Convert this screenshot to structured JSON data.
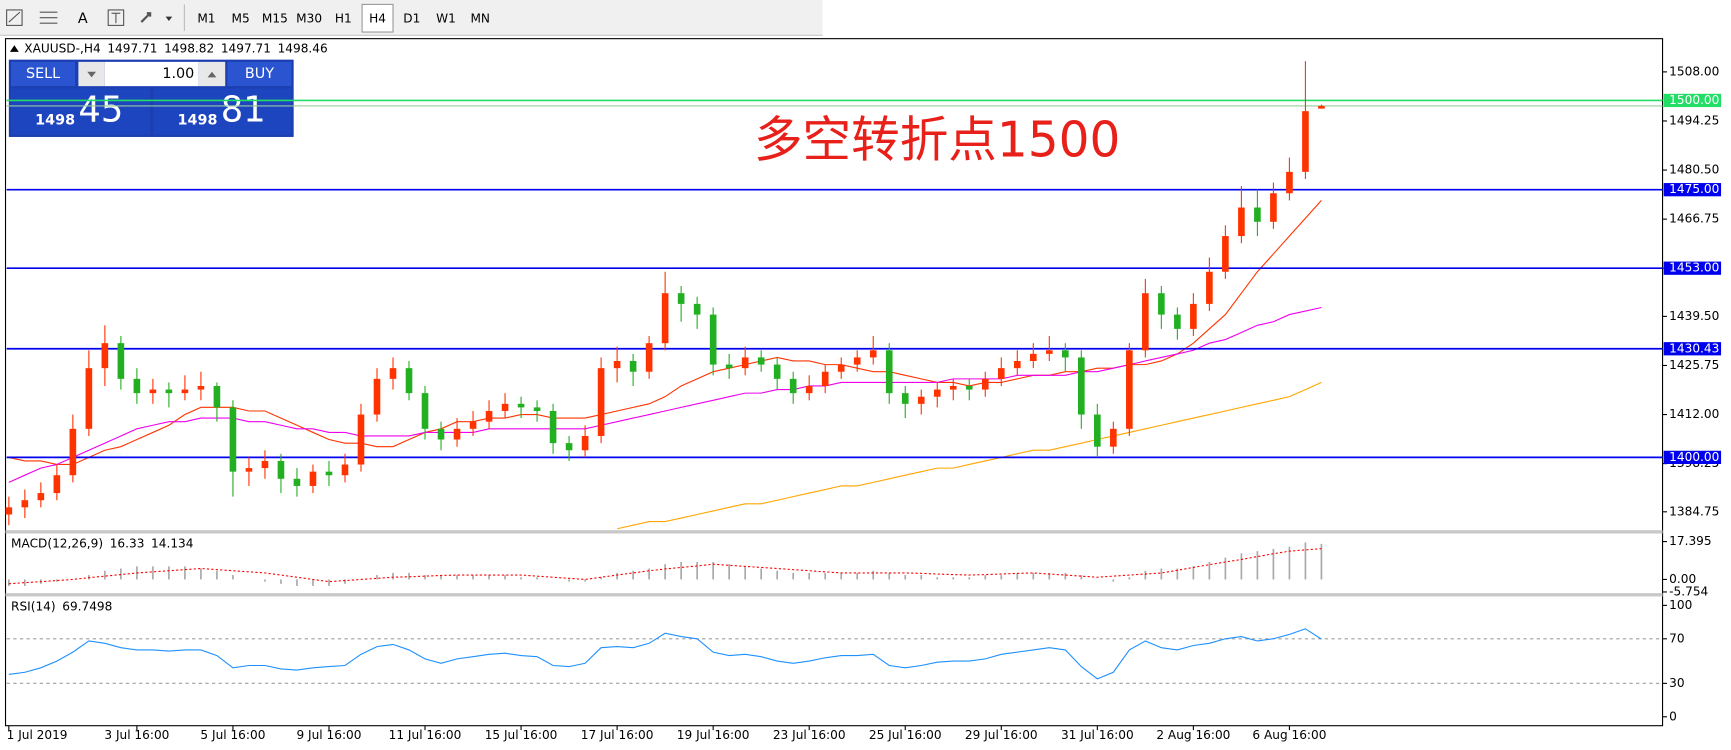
{
  "toolbar": {
    "text_tool": "A",
    "timeframes": [
      "M1",
      "M5",
      "M15",
      "M30",
      "H1",
      "H4",
      "D1",
      "W1",
      "MN"
    ],
    "active": "H4"
  },
  "trade_panel": {
    "sell": "SELL",
    "buy": "BUY",
    "lot": "1.00",
    "bid_big": "1498",
    "bid_small": "45",
    "ask_big": "1498",
    "ask_small": "81"
  },
  "chart_data": {
    "type": "candlestick",
    "symbol": "XAUUSD-,H4",
    "annotation": "多空转折点1500",
    "annotation_color": "#e8201a",
    "categories": [
      "1 Jul 2019",
      null,
      null,
      null,
      null,
      null,
      null,
      null,
      "3 Jul 16:00",
      null,
      null,
      null,
      null,
      null,
      "5 Jul 16:00",
      null,
      null,
      null,
      null,
      null,
      "9 Jul 16:00",
      null,
      null,
      null,
      null,
      null,
      "11 Jul 16:00",
      null,
      null,
      null,
      null,
      null,
      "15 Jul 16:00",
      null,
      null,
      null,
      null,
      null,
      "17 Jul 16:00",
      null,
      null,
      null,
      null,
      null,
      "19 Jul 16:00",
      null,
      null,
      null,
      null,
      null,
      "23 Jul 16:00",
      null,
      null,
      null,
      null,
      null,
      "25 Jul 16:00",
      null,
      null,
      null,
      null,
      null,
      "29 Jul 16:00",
      null,
      null,
      null,
      null,
      null,
      "31 Jul 16:00",
      null,
      null,
      null,
      null,
      null,
      "2 Aug 16:00",
      null,
      null,
      null,
      null,
      null,
      "6 Aug 16:00",
      null,
      null
    ],
    "ohlc": [
      [
        1384,
        1389,
        1381,
        1386
      ],
      [
        1386,
        1391,
        1383,
        1388
      ],
      [
        1388,
        1393,
        1386,
        1390
      ],
      [
        1390,
        1398,
        1388,
        1395
      ],
      [
        1395,
        1412,
        1393,
        1408
      ],
      [
        1408,
        1430,
        1406,
        1425
      ],
      [
        1425,
        1437,
        1420,
        1432
      ],
      [
        1432,
        1434,
        1419,
        1422
      ],
      [
        1422,
        1425,
        1415,
        1418
      ],
      [
        1418,
        1422,
        1415,
        1419
      ],
      [
        1419,
        1421,
        1414,
        1418
      ],
      [
        1418,
        1423,
        1416,
        1419
      ],
      [
        1419,
        1424,
        1416,
        1420
      ],
      [
        1420,
        1421,
        1410,
        1414
      ],
      [
        1414,
        1416,
        1389,
        1396
      ],
      [
        1396,
        1400,
        1392,
        1397
      ],
      [
        1397,
        1402,
        1394,
        1399
      ],
      [
        1399,
        1401,
        1390,
        1394
      ],
      [
        1394,
        1397,
        1389,
        1392
      ],
      [
        1392,
        1398,
        1390,
        1396
      ],
      [
        1396,
        1399,
        1392,
        1395
      ],
      [
        1395,
        1401,
        1393,
        1398
      ],
      [
        1398,
        1415,
        1396,
        1412
      ],
      [
        1412,
        1425,
        1410,
        1422
      ],
      [
        1422,
        1428,
        1419,
        1425
      ],
      [
        1425,
        1427,
        1416,
        1418
      ],
      [
        1418,
        1420,
        1405,
        1408
      ],
      [
        1408,
        1410,
        1402,
        1405
      ],
      [
        1405,
        1411,
        1403,
        1408
      ],
      [
        1408,
        1413,
        1406,
        1410
      ],
      [
        1410,
        1416,
        1408,
        1413
      ],
      [
        1413,
        1418,
        1411,
        1415
      ],
      [
        1415,
        1417,
        1411,
        1414
      ],
      [
        1414,
        1416,
        1410,
        1413
      ],
      [
        1413,
        1415,
        1401,
        1404
      ],
      [
        1404,
        1406,
        1399,
        1402
      ],
      [
        1402,
        1409,
        1400,
        1406
      ],
      [
        1406,
        1428,
        1404,
        1425
      ],
      [
        1425,
        1431,
        1421,
        1427
      ],
      [
        1427,
        1429,
        1420,
        1424
      ],
      [
        1424,
        1434,
        1422,
        1432
      ],
      [
        1432,
        1452,
        1430,
        1446
      ],
      [
        1446,
        1448,
        1438,
        1443
      ],
      [
        1443,
        1445,
        1436,
        1440
      ],
      [
        1440,
        1442,
        1423,
        1426
      ],
      [
        1426,
        1429,
        1422,
        1425
      ],
      [
        1425,
        1431,
        1423,
        1428
      ],
      [
        1428,
        1430,
        1424,
        1426
      ],
      [
        1426,
        1428,
        1419,
        1422
      ],
      [
        1422,
        1424,
        1415,
        1418
      ],
      [
        1418,
        1423,
        1416,
        1420
      ],
      [
        1420,
        1426,
        1418,
        1424
      ],
      [
        1424,
        1428,
        1422,
        1426
      ],
      [
        1426,
        1430,
        1424,
        1428
      ],
      [
        1428,
        1434,
        1426,
        1430
      ],
      [
        1430,
        1432,
        1415,
        1418
      ],
      [
        1418,
        1420,
        1411,
        1415
      ],
      [
        1415,
        1419,
        1412,
        1417
      ],
      [
        1417,
        1421,
        1414,
        1419
      ],
      [
        1419,
        1422,
        1416,
        1420
      ],
      [
        1420,
        1422,
        1416,
        1419
      ],
      [
        1419,
        1424,
        1417,
        1422
      ],
      [
        1422,
        1428,
        1420,
        1425
      ],
      [
        1425,
        1430,
        1423,
        1427
      ],
      [
        1427,
        1432,
        1425,
        1429
      ],
      [
        1429,
        1434,
        1427,
        1430
      ],
      [
        1430,
        1432,
        1424,
        1428
      ],
      [
        1428,
        1430,
        1408,
        1412
      ],
      [
        1412,
        1415,
        1400,
        1403
      ],
      [
        1403,
        1410,
        1401,
        1408
      ],
      [
        1408,
        1432,
        1406,
        1430
      ],
      [
        1430,
        1450,
        1428,
        1446
      ],
      [
        1446,
        1448,
        1436,
        1440
      ],
      [
        1440,
        1442,
        1433,
        1436
      ],
      [
        1436,
        1446,
        1434,
        1443
      ],
      [
        1443,
        1456,
        1441,
        1452
      ],
      [
        1452,
        1465,
        1450,
        1462
      ],
      [
        1462,
        1476,
        1460,
        1470
      ],
      [
        1470,
        1475,
        1462,
        1466
      ],
      [
        1466,
        1477,
        1464,
        1474
      ],
      [
        1474,
        1484,
        1472,
        1480
      ],
      [
        1480,
        1511,
        1478,
        1497
      ],
      [
        1497.71,
        1498.82,
        1497.71,
        1498.46
      ]
    ],
    "up_color": "#ff3300",
    "down_color": "#22b022",
    "moving_averages": [
      {
        "color": "#ff3300",
        "values": [
          1400,
          1399,
          1399,
          1398,
          1398,
          1400,
          1402,
          1403,
          1405,
          1407,
          1409,
          1412,
          1414,
          1414,
          1414,
          1413,
          1413,
          1411,
          1409,
          1407,
          1405,
          1404,
          1404,
          1403,
          1403,
          1405,
          1407,
          1408,
          1410,
          1410,
          1411,
          1411,
          1412,
          1412,
          1411,
          1411,
          1411,
          1412,
          1413,
          1414,
          1415,
          1417,
          1420,
          1422,
          1424,
          1425,
          1426,
          1427,
          1428,
          1427,
          1427,
          1426,
          1426,
          1425,
          1424,
          1424,
          1423,
          1422,
          1421,
          1421,
          1420,
          1421,
          1421,
          1422,
          1423,
          1423,
          1424,
          1424,
          1425,
          1425,
          1426,
          1426,
          1427,
          1429,
          1432,
          1436,
          1440,
          1446,
          1452,
          1457,
          1462,
          1467,
          1472
        ]
      },
      {
        "color": "#ee00ee",
        "values": [
          1393,
          1395,
          1397,
          1398,
          1400,
          1402,
          1404,
          1406,
          1408,
          1409,
          1410,
          1410,
          1411,
          1411,
          1411,
          1410,
          1410,
          1409,
          1408,
          1408,
          1407,
          1407,
          1406,
          1406,
          1406,
          1406,
          1407,
          1407,
          1407,
          1407,
          1408,
          1408,
          1408,
          1408,
          1408,
          1408,
          1408,
          1409,
          1410,
          1411,
          1412,
          1413,
          1414,
          1415,
          1416,
          1417,
          1418,
          1418,
          1419,
          1419,
          1420,
          1420,
          1421,
          1421,
          1421,
          1421,
          1421,
          1421,
          1421,
          1422,
          1422,
          1422,
          1422,
          1423,
          1423,
          1423,
          1423,
          1424,
          1424,
          1425,
          1426,
          1427,
          1428,
          1429,
          1430,
          1432,
          1433,
          1435,
          1437,
          1438,
          1440,
          1441,
          1442
        ]
      },
      {
        "color": "#ffa500",
        "values": [
          null,
          null,
          null,
          null,
          null,
          null,
          null,
          null,
          null,
          null,
          null,
          null,
          null,
          null,
          null,
          null,
          null,
          null,
          null,
          null,
          null,
          null,
          null,
          null,
          null,
          null,
          null,
          null,
          null,
          null,
          null,
          null,
          null,
          null,
          null,
          null,
          null,
          null,
          1380,
          1381,
          1382,
          1382,
          1383,
          1384,
          1385,
          1386,
          1387,
          1387,
          1388,
          1389,
          1390,
          1391,
          1392,
          1392,
          1393,
          1394,
          1395,
          1396,
          1397,
          1397,
          1398,
          1399,
          1400,
          1401,
          1402,
          1402,
          1403,
          1404,
          1405,
          1406,
          1407,
          1408,
          1409,
          1410,
          1411,
          1412,
          1413,
          1414,
          1415,
          1416,
          1417,
          1419,
          1421
        ]
      }
    ],
    "hlines": [
      {
        "value": 1500,
        "label": "1500.00",
        "color": "#22dd66"
      },
      {
        "value": 1475,
        "label": "1475.00",
        "color": "#0000ee"
      },
      {
        "value": 1453,
        "label": "1453.00",
        "color": "#0000ee"
      },
      {
        "value": 1430.43,
        "color": "#0000ee"
      },
      {
        "value": 1400,
        "label": "1400.00",
        "color": "#0000ee"
      }
    ],
    "ylim": [
      1379.6,
      1517
    ],
    "yticks": [
      {
        "value": 1508,
        "label": "1508.00"
      },
      1494.25,
      {
        "value": 1480.5,
        "label": "1480.50"
      },
      1466.75,
      {
        "value": 1453,
        "label": "1453.00"
      },
      {
        "value": 1439.5,
        "label": "1439.50"
      },
      1425.75,
      {
        "value": 1412,
        "label": "1412.00"
      },
      1398.25,
      1384.75
    ],
    "macd": {
      "label": "MACD(12,26,9)",
      "histogram": [
        -3,
        -3,
        -2,
        -1,
        0,
        2,
        4,
        5,
        6,
        6,
        6,
        6,
        5,
        4,
        2,
        0,
        -1,
        -2,
        -3,
        -3,
        -3,
        -2,
        0,
        2,
        3,
        3,
        2,
        2,
        2,
        2,
        2,
        2,
        1,
        1,
        0,
        -1,
        -1,
        1,
        3,
        4,
        5,
        7,
        8,
        8,
        8,
        7,
        6,
        5,
        4,
        3,
        3,
        3,
        3,
        3,
        4,
        3,
        2,
        2,
        1,
        1,
        1,
        2,
        2,
        3,
        3,
        3,
        3,
        2,
        0,
        -1,
        1,
        4,
        5,
        5,
        6,
        8,
        10,
        12,
        13,
        14,
        15,
        17,
        16.33
      ],
      "signal": [
        -2,
        -1.5,
        -1,
        -0.5,
        0,
        0.8,
        1.5,
        2.2,
        3,
        3.5,
        4,
        4.5,
        5,
        4.5,
        4,
        3.5,
        3,
        2,
        1,
        0,
        -1,
        -0.5,
        0,
        0.5,
        1,
        1.2,
        1.5,
        1.8,
        2,
        2,
        2,
        2,
        2,
        1.5,
        1,
        0.5,
        0,
        1,
        2,
        3,
        4,
        4.8,
        5.5,
        6.2,
        7,
        6.5,
        6,
        5.5,
        5,
        4.5,
        4,
        3.5,
        3,
        3,
        3,
        3,
        3,
        2.8,
        2.5,
        2.2,
        2,
        2.2,
        2.5,
        2.8,
        3,
        2.5,
        2,
        1.5,
        1,
        1.5,
        2,
        2.5,
        3,
        4.2,
        5.5,
        6.8,
        8,
        9.2,
        10.5,
        11.8,
        13,
        13.6,
        14.134
      ],
      "histogram_color": "#a8a8a8",
      "signal_color": "#ff0000",
      "ylim": [
        -6.3,
        21.1
      ],
      "yticks": [
        17.395,
        {
          "value": 0,
          "label": "0.00"
        },
        -5.754
      ]
    },
    "rsi": {
      "label": "RSI(14)",
      "values": [
        38,
        40,
        44,
        50,
        58,
        68,
        66,
        62,
        60,
        60,
        59,
        60,
        60,
        55,
        44,
        46,
        46,
        43,
        42,
        44,
        45,
        46,
        56,
        63,
        65,
        60,
        52,
        48,
        52,
        54,
        56,
        57,
        55,
        54,
        46,
        45,
        48,
        62,
        63,
        62,
        66,
        75,
        72,
        70,
        58,
        55,
        56,
        54,
        50,
        48,
        50,
        53,
        55,
        55,
        56,
        46,
        44,
        46,
        49,
        50,
        50,
        52,
        56,
        58,
        60,
        62,
        60,
        45,
        34,
        40,
        60,
        68,
        62,
        60,
        64,
        66,
        70,
        72,
        68,
        70,
        74,
        79,
        69.7498
      ],
      "color": "#1e90ff",
      "ylim": [
        -8,
        108
      ],
      "yticks": [
        100,
        70,
        30,
        0
      ],
      "levels": [
        70,
        30
      ]
    }
  }
}
